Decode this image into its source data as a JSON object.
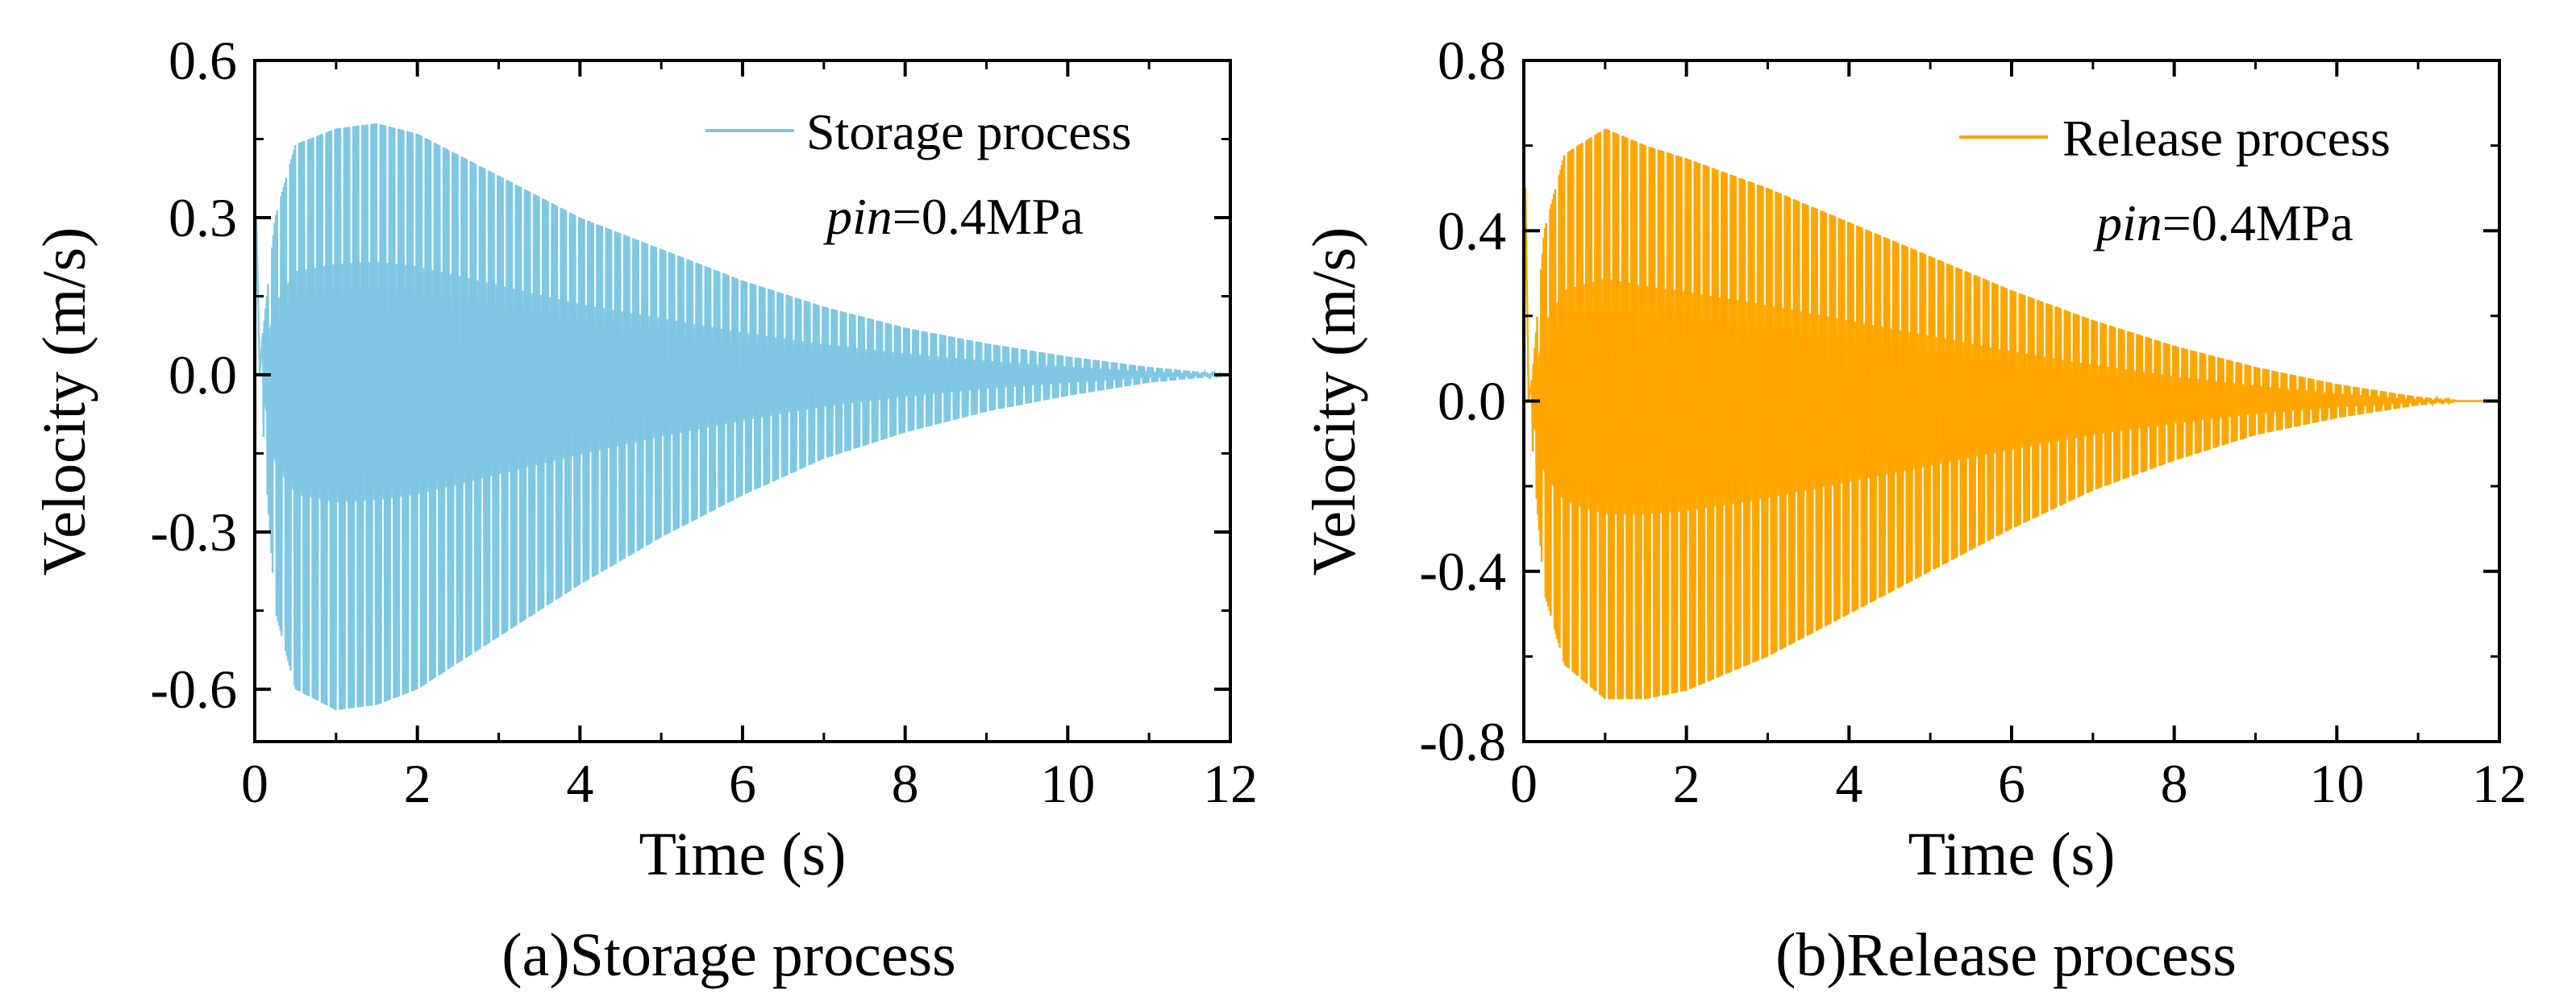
{
  "chart_data": [
    {
      "type": "line",
      "panel": "a",
      "caption": "(a)Storage process",
      "xlabel": "Time (s)",
      "ylabel": "Velocity (m/s)",
      "xlim": [
        0,
        12
      ],
      "ylim": [
        -0.7,
        0.6
      ],
      "xticks": [
        0,
        2,
        4,
        6,
        8,
        10,
        12
      ],
      "xtick_labels": [
        "0",
        "2",
        "4",
        "6",
        "8",
        "10",
        "12"
      ],
      "yticks": [
        -0.6,
        -0.3,
        0.0,
        0.3,
        0.6
      ],
      "ytick_labels": [
        "-0.6",
        "-0.3",
        "0.0",
        "0.3",
        "0.6"
      ],
      "legend": {
        "label": "Storage process",
        "placement": "top-right"
      },
      "annotation": {
        "symbol": "pin",
        "rest": "=0.4MPa"
      },
      "series": [
        {
          "name": "Storage process",
          "color": "#7ec8e3",
          "envelope": {
            "t": [
              0.1,
              0.25,
              0.5,
              1.0,
              1.5,
              2.0,
              3.0,
              4.0,
              5.0,
              6.0,
              7.0,
              8.0,
              9.0,
              10.0,
              11.0,
              12.0
            ],
            "upper": [
              0.08,
              0.3,
              0.44,
              0.47,
              0.48,
              0.46,
              0.38,
              0.3,
              0.24,
              0.18,
              0.13,
              0.09,
              0.06,
              0.035,
              0.015,
              0.0
            ],
            "lower": [
              -0.1,
              -0.45,
              -0.6,
              -0.64,
              -0.63,
              -0.6,
              -0.5,
              -0.4,
              -0.31,
              -0.23,
              -0.16,
              -0.11,
              -0.07,
              -0.04,
              -0.015,
              0.0
            ]
          }
        }
      ]
    },
    {
      "type": "line",
      "panel": "b",
      "caption": "(b)Release process",
      "xlabel": "Time (s)",
      "ylabel": "Velocity (m/s)",
      "xlim": [
        0,
        12
      ],
      "ylim": [
        -0.8,
        0.8
      ],
      "xticks": [
        0,
        2,
        4,
        6,
        8,
        10,
        12
      ],
      "xtick_labels": [
        "0",
        "2",
        "4",
        "6",
        "8",
        "10",
        "12"
      ],
      "yticks": [
        -0.8,
        -0.4,
        0.0,
        0.4,
        0.8
      ],
      "ytick_labels": [
        "-0.8",
        "-0.4",
        "0.0",
        "0.4",
        "0.8"
      ],
      "legend": {
        "label": "Release process",
        "placement": "top-right"
      },
      "annotation": {
        "symbol": "pin",
        "rest": "=0.4MPa"
      },
      "series": [
        {
          "name": "Release process",
          "color": "#ffa500",
          "envelope": {
            "t": [
              0.1,
              0.25,
              0.5,
              1.0,
              1.5,
              2.0,
              3.0,
              4.0,
              5.0,
              6.0,
              7.0,
              8.0,
              9.0,
              10.0,
              11.0,
              11.5,
              12.0
            ],
            "upper": [
              0.05,
              0.4,
              0.58,
              0.64,
              0.6,
              0.57,
              0.5,
              0.42,
              0.34,
              0.26,
              0.19,
              0.13,
              0.08,
              0.04,
              0.01,
              0.0,
              0.0
            ],
            "lower": [
              -0.1,
              -0.45,
              -0.62,
              -0.7,
              -0.7,
              -0.68,
              -0.6,
              -0.5,
              -0.4,
              -0.3,
              -0.21,
              -0.14,
              -0.08,
              -0.04,
              -0.01,
              0.0,
              0.0
            ]
          }
        }
      ]
    }
  ]
}
